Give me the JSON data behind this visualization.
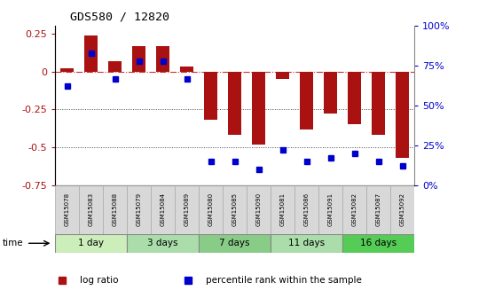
{
  "title": "GDS580 / 12820",
  "samples": [
    "GSM15078",
    "GSM15083",
    "GSM15088",
    "GSM15079",
    "GSM15084",
    "GSM15089",
    "GSM15080",
    "GSM15085",
    "GSM15090",
    "GSM15081",
    "GSM15086",
    "GSM15091",
    "GSM15082",
    "GSM15087",
    "GSM15092"
  ],
  "log_ratio": [
    0.02,
    0.24,
    0.07,
    0.17,
    0.17,
    0.03,
    -0.32,
    -0.42,
    -0.48,
    -0.05,
    -0.38,
    -0.28,
    -0.35,
    -0.42,
    -0.57
  ],
  "percentile_rank": [
    62,
    83,
    67,
    78,
    78,
    67,
    15,
    15,
    10,
    22,
    15,
    17,
    20,
    15,
    12
  ],
  "groups": [
    {
      "label": "1 day",
      "start": 0,
      "end": 3,
      "color": "#cceebb"
    },
    {
      "label": "3 days",
      "start": 3,
      "end": 6,
      "color": "#aaddaa"
    },
    {
      "label": "7 days",
      "start": 6,
      "end": 9,
      "color": "#88cc88"
    },
    {
      "label": "11 days",
      "start": 9,
      "end": 12,
      "color": "#aaddaa"
    },
    {
      "label": "16 days",
      "start": 12,
      "end": 15,
      "color": "#55cc55"
    }
  ],
  "bar_color": "#aa1111",
  "scatter_color": "#0000cc",
  "ylim_left": [
    -0.75,
    0.3
  ],
  "ylim_right": [
    0,
    100
  ],
  "yticks_left": [
    0.25,
    0.0,
    -0.25,
    -0.5,
    -0.75
  ],
  "yticks_right": [
    100,
    75,
    50,
    25,
    0
  ],
  "hline_zero_color": "#cc3333",
  "dotline_color": "#444444",
  "bar_width": 0.55,
  "figsize": [
    5.4,
    3.45
  ],
  "dpi": 100
}
